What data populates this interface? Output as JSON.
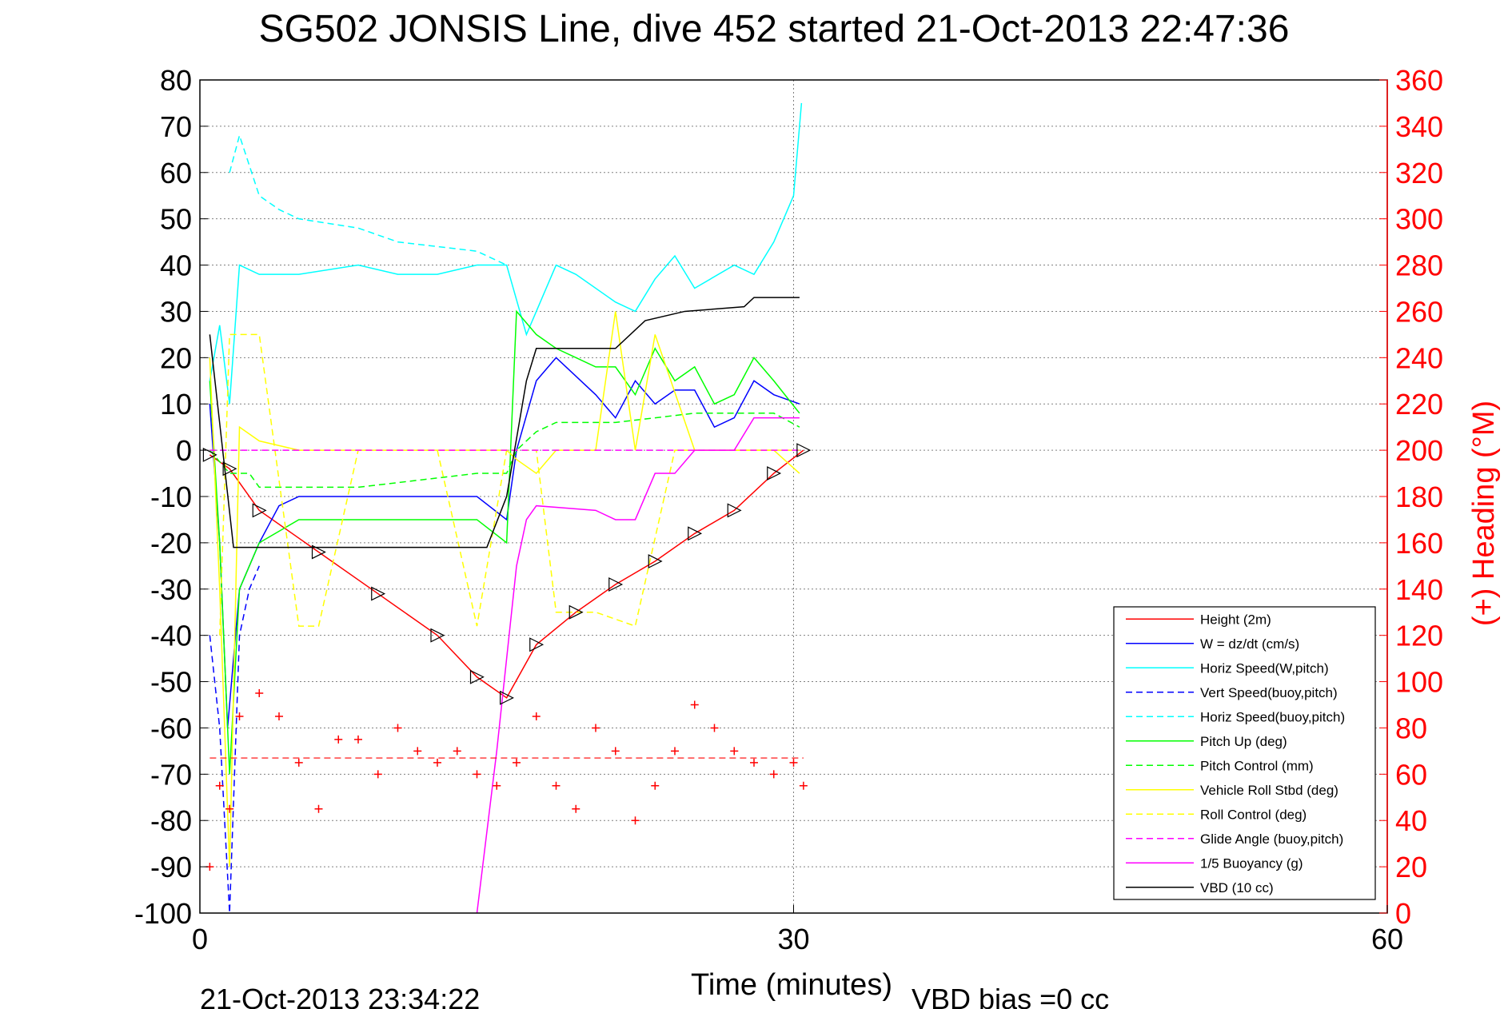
{
  "chart_data": {
    "type": "line",
    "title": "SG502 JONSIS Line, dive 452 started 21-Oct-2013 22:47:36",
    "xlabel": "Time (minutes)",
    "ylabel_right": "(+) Heading (°M)",
    "footer_left": "21-Oct-2013 23:34:22",
    "footer_right": "VBD bias =0 cc",
    "xlim": [
      0,
      60
    ],
    "ylim": [
      -100,
      80
    ],
    "ylim_right": [
      0,
      360
    ],
    "x_ticks": [
      0,
      30,
      60
    ],
    "x_tick_labels": [
      "0",
      "30",
      "60"
    ],
    "y_ticks": [
      80,
      70,
      60,
      50,
      40,
      30,
      20,
      10,
      0,
      -10,
      -20,
      -30,
      -40,
      -50,
      -60,
      -70,
      -80,
      -90,
      -100
    ],
    "y_tick_labels": [
      "80",
      "70",
      "60",
      "50",
      "40",
      "30",
      "20",
      "10",
      "0",
      "-10",
      "-20",
      "-30",
      "-40",
      "-50",
      "-60",
      "-70",
      "-80",
      "-90",
      "-100"
    ],
    "y_right_ticks": [
      360,
      340,
      320,
      300,
      280,
      260,
      240,
      220,
      200,
      180,
      160,
      140,
      120,
      100,
      80,
      60,
      40,
      20,
      0
    ],
    "y_right_tick_labels": [
      "360",
      "340",
      "320",
      "300",
      "280",
      "260",
      "240",
      "220",
      "200",
      "180",
      "160",
      "140",
      "120",
      "100",
      "80",
      "60",
      "40",
      "20",
      "0"
    ],
    "grid": true,
    "legend_position": "bottom-right",
    "colors": {
      "right_axis": "#ff0000",
      "grid": "#808080",
      "axis": "#000000"
    },
    "series": [
      {
        "name": "Height (2m)",
        "color": "#ff0000",
        "dash": "solid",
        "x": [
          0.5,
          1.5,
          3,
          6,
          9,
          12,
          14,
          15.5,
          17,
          19,
          21,
          23,
          25,
          27,
          29,
          30.5
        ],
        "y": [
          -1,
          -4,
          -13,
          -22,
          -31,
          -40,
          -49,
          -53.5,
          -42,
          -35,
          -29,
          -24,
          -18,
          -13,
          -5,
          0
        ]
      },
      {
        "name": "W = dz/dt (cm/s)",
        "color": "#0000ff",
        "dash": "solid",
        "x": [
          0.5,
          1,
          1.4,
          2,
          3,
          4,
          5,
          8,
          12,
          14,
          15.5,
          16,
          17,
          18,
          20,
          21,
          22,
          23,
          24,
          25,
          26,
          27,
          28,
          29,
          30.3
        ],
        "y": [
          10,
          -20,
          -60,
          -30,
          -20,
          -12,
          -10,
          -10,
          -10,
          -10,
          -15,
          0,
          15,
          20,
          12,
          7,
          15,
          10,
          13,
          13,
          5,
          7,
          15,
          12,
          10
        ]
      },
      {
        "name": "Horiz Speed(W,pitch)",
        "color": "#00ffff",
        "dash": "solid",
        "x": [
          0.5,
          1,
          1.5,
          2,
          3,
          5,
          8,
          10,
          12,
          14,
          15.5,
          16.5,
          18,
          19,
          21,
          22,
          23,
          24,
          25,
          27,
          28,
          29,
          30,
          30.4
        ],
        "y": [
          15,
          27,
          10,
          40,
          38,
          38,
          40,
          38,
          38,
          40,
          40,
          25,
          40,
          38,
          32,
          30,
          37,
          42,
          35,
          40,
          38,
          45,
          55,
          75
        ]
      },
      {
        "name": "Vert Speed(buoy,pitch)",
        "color": "#0000ff",
        "dash": "dashed",
        "x": [
          0.5,
          1,
          1.5,
          2,
          2.5,
          3
        ],
        "y": [
          -40,
          -60,
          -100,
          -40,
          -30,
          -25
        ]
      },
      {
        "name": "Horiz Speed(buoy,pitch)",
        "color": "#00ffff",
        "dash": "dashed",
        "x": [
          1.5,
          2,
          3,
          4,
          5,
          8,
          10,
          12,
          14,
          15.5
        ],
        "y": [
          60,
          68,
          55,
          52,
          50,
          48,
          45,
          44,
          43,
          40
        ]
      },
      {
        "name": "Pitch Up (deg)",
        "color": "#00ff00",
        "dash": "solid",
        "x": [
          0.5,
          1,
          1.5,
          2,
          3,
          5,
          8,
          12,
          14,
          15.5,
          16,
          17,
          18,
          19,
          20,
          21,
          22,
          23,
          24,
          25,
          26,
          27,
          28,
          29,
          30.3
        ],
        "y": [
          15,
          -20,
          -70,
          -30,
          -20,
          -15,
          -15,
          -15,
          -15,
          -20,
          30,
          25,
          22,
          20,
          18,
          18,
          12,
          22,
          15,
          18,
          10,
          12,
          20,
          15,
          8
        ]
      },
      {
        "name": "Pitch Control (mm)",
        "color": "#00ff00",
        "dash": "dashed",
        "x": [
          0.5,
          1.5,
          2.5,
          3,
          8,
          14,
          15.5,
          16,
          17,
          18,
          19,
          21,
          23,
          25,
          27,
          29,
          30.3
        ],
        "y": [
          0,
          -5,
          -5,
          -8,
          -8,
          -5,
          -5,
          0,
          4,
          6,
          6,
          6,
          7,
          8,
          8,
          8,
          5
        ]
      },
      {
        "name": "Vehicle Roll Stbd (deg)",
        "color": "#ffff00",
        "dash": "solid",
        "x": [
          0.5,
          1,
          1.5,
          2,
          3,
          5,
          8,
          12,
          14,
          15.5,
          16,
          17,
          18,
          20,
          21,
          22,
          23,
          25,
          27,
          29,
          30.3
        ],
        "y": [
          20,
          -30,
          -90,
          5,
          2,
          0,
          0,
          0,
          0,
          0,
          -2,
          -5,
          0,
          0,
          30,
          0,
          25,
          0,
          0,
          0,
          -5
        ]
      },
      {
        "name": "Roll Control (deg)",
        "color": "#ffff00",
        "dash": "dashed",
        "x": [
          1,
          1.5,
          2,
          3,
          5,
          6,
          8,
          10,
          12,
          14,
          15.5,
          16,
          17,
          18,
          20,
          22,
          24,
          26,
          30.3
        ],
        "y": [
          -40,
          25,
          25,
          25,
          -38,
          -38,
          0,
          0,
          0,
          -38,
          0,
          0,
          0,
          -35,
          -35,
          -38,
          0,
          0,
          0
        ]
      },
      {
        "name": "Glide Angle (buoy,pitch)",
        "color": "#ff00ff",
        "dash": "dashed",
        "x": [
          0.5,
          2,
          5,
          10,
          15,
          20,
          25,
          30.3
        ],
        "y": [
          0,
          0,
          0,
          0,
          0,
          0,
          0,
          0
        ]
      },
      {
        "name": "1/5 Buoyancy (g)",
        "color": "#ff00ff",
        "dash": "solid",
        "x": [
          14,
          15,
          16,
          16.5,
          17,
          20,
          21,
          22,
          23,
          24,
          25,
          26,
          27,
          28,
          29,
          30.3
        ],
        "y": [
          -100,
          -65,
          -25,
          -15,
          -12,
          -13,
          -15,
          -15,
          -5,
          -5,
          0,
          0,
          0,
          7,
          7,
          7
        ]
      },
      {
        "name": "VBD (10 cc)",
        "color": "#000000",
        "dash": "solid",
        "x": [
          0.5,
          1.7,
          14.5,
          15.5,
          16.5,
          17,
          21,
          22.5,
          24.5,
          27.5,
          28,
          30.3
        ],
        "y": [
          25,
          -21,
          -21,
          -10,
          15,
          22,
          22,
          28,
          30,
          31,
          33,
          33
        ]
      }
    ],
    "heading": {
      "color": "#ff0000",
      "mean": 67,
      "x": [
        0.5,
        1,
        1.5,
        2,
        3,
        4,
        5,
        6,
        7,
        8,
        9,
        10,
        11,
        12,
        13,
        14,
        15,
        16,
        17,
        18,
        19,
        20,
        21,
        22,
        23,
        24,
        25,
        26,
        27,
        28,
        29,
        30,
        30.5
      ],
      "y": [
        20,
        55,
        45,
        85,
        95,
        85,
        65,
        45,
        75,
        75,
        60,
        80,
        70,
        65,
        70,
        60,
        55,
        65,
        85,
        55,
        45,
        80,
        70,
        40,
        55,
        70,
        90,
        80,
        70,
        65,
        60,
        65,
        55
      ]
    }
  }
}
